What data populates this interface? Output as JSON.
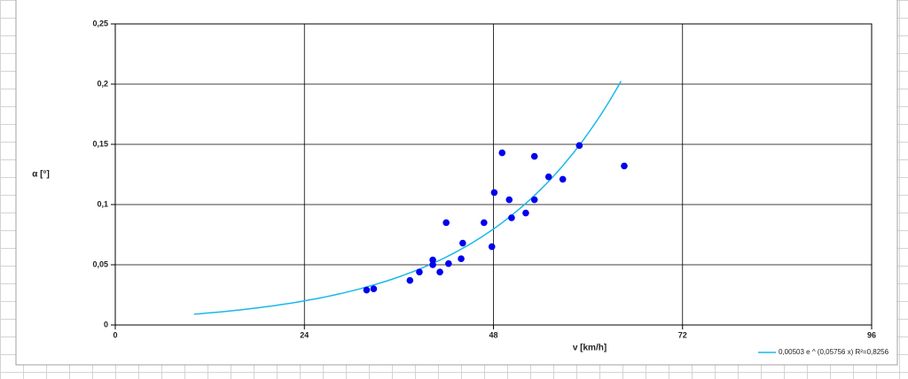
{
  "chart_data": {
    "type": "scatter",
    "x_label": "v [km/h]",
    "y_label": "α [°]",
    "x": [
      31.9,
      32.8,
      37.4,
      38.6,
      40.3,
      40.3,
      41.2,
      42.3,
      42.0,
      43.9,
      44.1,
      46.8,
      47.8,
      48.1,
      49.1,
      50.0,
      50.3,
      52.1,
      53.2,
      53.2,
      55.0,
      56.8,
      58.9,
      64.6
    ],
    "values": [
      0.029,
      0.03,
      0.037,
      0.044,
      0.054,
      0.05,
      0.044,
      0.051,
      0.085,
      0.055,
      0.068,
      0.085,
      0.065,
      0.11,
      0.143,
      0.104,
      0.089,
      0.093,
      0.14,
      0.104,
      0.123,
      0.121,
      0.149,
      0.132
    ],
    "color": "#0000ee",
    "trendline": {
      "name": "0,00503 e ^ (0,05756 x) R²=0,8256",
      "color": "#1ab8e8",
      "a": 0.00503,
      "b": 0.05756,
      "x_range": [
        10,
        64.2
      ]
    },
    "xlim": [
      0,
      96
    ],
    "ylim": [
      0,
      0.25
    ],
    "xticks": [
      0,
      24,
      48,
      72,
      96
    ],
    "yticks": [
      {
        "value": 0,
        "label": "0"
      },
      {
        "value": 0.05,
        "label": "0,05"
      },
      {
        "value": 0.1,
        "label": "0,1"
      },
      {
        "value": 0.15,
        "label": "0,15"
      },
      {
        "value": 0.2,
        "label": "0,2"
      },
      {
        "value": 0.25,
        "label": "0,25"
      }
    ],
    "grid": true
  }
}
